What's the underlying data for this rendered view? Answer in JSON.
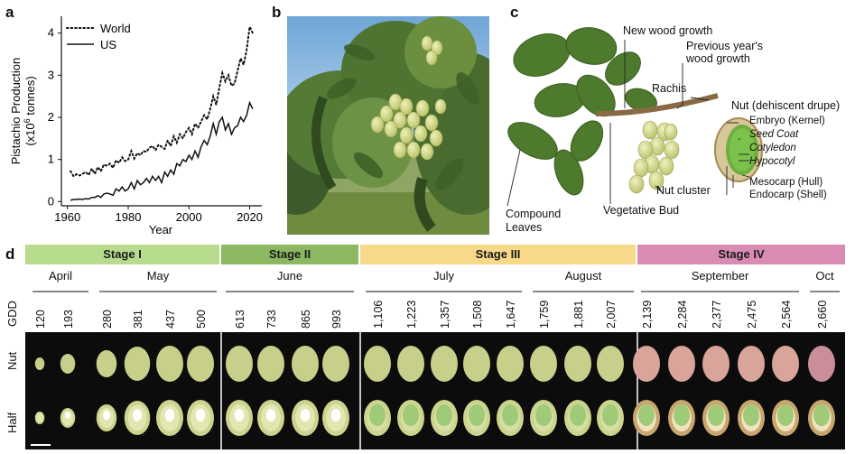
{
  "figure": {
    "panel_a": {
      "letter": "a",
      "chart_data": {
        "type": "line",
        "ylabel": "Pistachio Production",
        "ylabel_unit_prefix": "(x10",
        "ylabel_unit_exp": "6",
        "ylabel_unit_suffix": " tonnes)",
        "xlabel": "Year",
        "xlim": [
          1958,
          2024
        ],
        "ylim": [
          -0.1,
          4.4
        ],
        "xticks": [
          "1960",
          "1980",
          "2000",
          "2020"
        ],
        "xtick_values": [
          1960,
          1980,
          2000,
          2020
        ],
        "yticks": [
          "0",
          "1",
          "2",
          "3",
          "4"
        ],
        "ytick_values": [
          0,
          1,
          2,
          3,
          4
        ],
        "legend": [
          "World",
          "US"
        ],
        "series": [
          {
            "name": "World",
            "style": "dotted",
            "x": [
              1961,
              1962,
              1963,
              1964,
              1965,
              1966,
              1967,
              1968,
              1969,
              1970,
              1971,
              1972,
              1973,
              1974,
              1975,
              1976,
              1977,
              1978,
              1979,
              1980,
              1981,
              1982,
              1983,
              1984,
              1985,
              1986,
              1987,
              1988,
              1989,
              1990,
              1991,
              1992,
              1993,
              1994,
              1995,
              1996,
              1997,
              1998,
              1999,
              2000,
              2001,
              2002,
              2003,
              2004,
              2005,
              2006,
              2007,
              2008,
              2009,
              2010,
              2011,
              2012,
              2013,
              2014,
              2015,
              2016,
              2017,
              2018,
              2019,
              2020,
              2021
            ],
            "y": [
              0.72,
              0.6,
              0.65,
              0.62,
              0.66,
              0.7,
              0.63,
              0.78,
              0.66,
              0.82,
              0.72,
              0.88,
              0.85,
              0.9,
              0.8,
              0.98,
              0.92,
              1.05,
              0.96,
              1.0,
              1.2,
              1.02,
              1.15,
              1.1,
              1.2,
              1.18,
              1.28,
              1.32,
              1.22,
              1.35,
              1.3,
              1.25,
              1.45,
              1.32,
              1.55,
              1.4,
              1.6,
              1.5,
              1.65,
              1.75,
              1.6,
              1.85,
              1.75,
              1.9,
              2.05,
              1.95,
              2.2,
              2.5,
              2.3,
              2.7,
              3.05,
              2.85,
              3.0,
              2.75,
              2.8,
              3.1,
              3.4,
              3.25,
              3.6,
              4.15,
              4.0
            ]
          },
          {
            "name": "US",
            "style": "solid",
            "x": [
              1961,
              1962,
              1963,
              1964,
              1965,
              1966,
              1967,
              1968,
              1969,
              1970,
              1971,
              1972,
              1973,
              1974,
              1975,
              1976,
              1977,
              1978,
              1979,
              1980,
              1981,
              1982,
              1983,
              1984,
              1985,
              1986,
              1987,
              1988,
              1989,
              1990,
              1991,
              1992,
              1993,
              1994,
              1995,
              1996,
              1997,
              1998,
              1999,
              2000,
              2001,
              2002,
              2003,
              2004,
              2005,
              2006,
              2007,
              2008,
              2009,
              2010,
              2011,
              2012,
              2013,
              2014,
              2015,
              2016,
              2017,
              2018,
              2019,
              2020,
              2021
            ],
            "y": [
              0.03,
              0.05,
              0.05,
              0.06,
              0.05,
              0.07,
              0.06,
              0.1,
              0.1,
              0.14,
              0.1,
              0.18,
              0.2,
              0.18,
              0.15,
              0.3,
              0.25,
              0.35,
              0.25,
              0.3,
              0.45,
              0.3,
              0.5,
              0.4,
              0.45,
              0.55,
              0.45,
              0.6,
              0.5,
              0.6,
              0.45,
              0.7,
              0.6,
              0.75,
              0.65,
              0.9,
              0.85,
              1.0,
              0.95,
              1.1,
              1.0,
              1.2,
              1.05,
              1.3,
              1.45,
              1.35,
              1.55,
              1.85,
              1.6,
              1.9,
              2.0,
              1.7,
              1.85,
              1.6,
              1.75,
              1.8,
              2.0,
              1.9,
              2.05,
              2.35,
              2.2
            ]
          }
        ]
      }
    },
    "panel_b": {
      "letter": "b"
    },
    "panel_c": {
      "letter": "c",
      "labels": {
        "new_wood": "New wood growth",
        "prev_wood_1": "Previous year's",
        "prev_wood_2": "wood growth",
        "rachis": "Rachis",
        "nut_title": "Nut (dehiscent drupe)",
        "embryo": "Embryo (Kernel)",
        "seed_coat": "Seed Coat",
        "cotyledon": "Cotyledon",
        "hypocotyl": "Hypocotyl",
        "mesocarp": "Mesocarp (Hull)",
        "endocarp": "Endocarp (Shell)",
        "nut_cluster": "Nut cluster",
        "vegetative_bud": "Vegetative Bud",
        "compound_1": "Compound",
        "compound_2": "Leaves"
      }
    },
    "panel_d": {
      "letter": "d",
      "stages": [
        {
          "label": "Stage I",
          "color": "#b7dc8e"
        },
        {
          "label": "Stage II",
          "color": "#8cb862"
        },
        {
          "label": "Stage III",
          "color": "#f8d98a"
        },
        {
          "label": "Stage IV",
          "color": "#d98bb3"
        }
      ],
      "months": [
        "April",
        "May",
        "June",
        "July",
        "August",
        "September",
        "Oct"
      ],
      "gdd_label": "GDD",
      "gdd": [
        "120",
        "193",
        "280",
        "381",
        "437",
        "500",
        "613",
        "733",
        "865",
        "993",
        "1,106",
        "1,223",
        "1,357",
        "1,508",
        "1,647",
        "1,759",
        "1,881",
        "2,007",
        "2,139",
        "2,284",
        "2,377",
        "2,475",
        "2,564",
        "2,660"
      ],
      "row_labels": [
        "Nut",
        "Half"
      ],
      "colors": {
        "nut_green": "#c7cf8a",
        "nut_pink": "#d9a49a",
        "strip_bg": "#0c0c0c"
      }
    }
  }
}
